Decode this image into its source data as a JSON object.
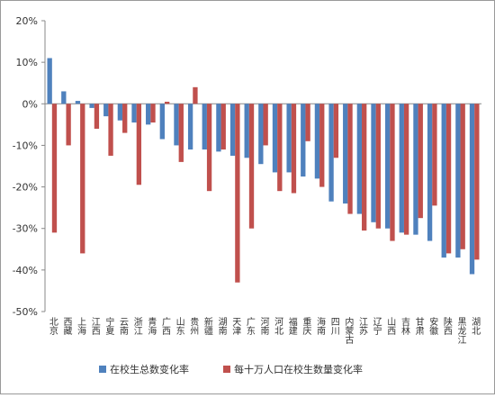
{
  "chart_data": {
    "type": "bar",
    "categories": [
      "北京",
      "西藏",
      "上海",
      "江西",
      "宁夏",
      "云南",
      "浙江",
      "青海",
      "广西",
      "山东",
      "贵州",
      "新疆",
      "湖南",
      "天津",
      "广东",
      "河南",
      "河北",
      "福建",
      "重庆",
      "海南",
      "四川",
      "内蒙古",
      "江苏",
      "辽宁",
      "山西",
      "吉林",
      "甘肃",
      "安徽",
      "陕西",
      "黑龙江",
      "湖北"
    ],
    "series": [
      {
        "name": "在校生总数变化率",
        "color": "#4f81bd",
        "values": [
          11,
          3,
          0.7,
          -1,
          -3,
          -4,
          -4.5,
          -5,
          -8.5,
          -10,
          -11,
          -11,
          -11.5,
          -12.5,
          -13,
          -14.5,
          -16.5,
          -16.5,
          -17.5,
          -18,
          -23.5,
          -24,
          -26.5,
          -28.5,
          -30,
          -31,
          -31.5,
          -33,
          -37,
          -37,
          -41
        ]
      },
      {
        "name": "每十万人口在校生数量变化率",
        "color": "#c0504d",
        "values": [
          -31,
          -10,
          -36,
          -6,
          -12.5,
          -7,
          -19.5,
          -4.5,
          0.5,
          -14,
          4,
          -21,
          -11,
          -43,
          -30,
          -10,
          -21,
          -21.5,
          -9,
          -20,
          -13,
          -26.5,
          -30.5,
          -30,
          -33,
          -31.5,
          -27.5,
          -24.5,
          -36,
          -35,
          -37.5
        ]
      }
    ],
    "ylim": [
      -50,
      20
    ],
    "yticks": [
      {
        "value": -50,
        "label": "-50%"
      },
      {
        "value": -40,
        "label": "-40%"
      },
      {
        "value": -30,
        "label": "-30%"
      },
      {
        "value": -20,
        "label": "-20%"
      },
      {
        "value": -10,
        "label": "-10%"
      },
      {
        "value": 0,
        "label": "0%"
      },
      {
        "value": 10,
        "label": "10%"
      },
      {
        "value": 20,
        "label": "20%"
      }
    ],
    "grid": false
  }
}
